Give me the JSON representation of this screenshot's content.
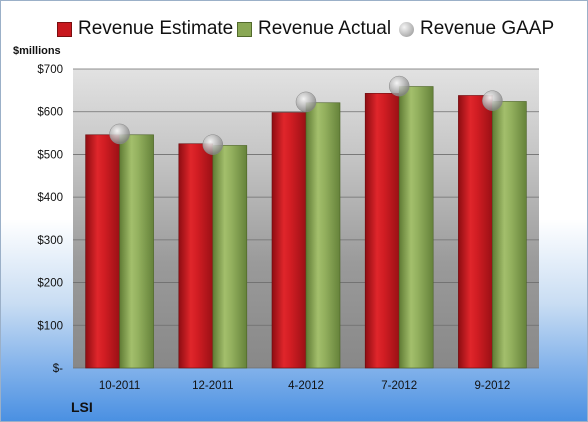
{
  "legend": {
    "estimate": "Revenue Estimate",
    "actual": "Revenue Actual",
    "gaap": "Revenue GAAP"
  },
  "unit_label": "$millions",
  "company": "LSI",
  "colors": {
    "estimate": "#c8181e",
    "actual": "#8aa855",
    "gaap": "#b0b0b0"
  },
  "chart_data": {
    "type": "bar",
    "categories": [
      "10-2011",
      "12-2011",
      "4-2012",
      "7-2012",
      "9-2012"
    ],
    "series": [
      {
        "name": "Revenue Estimate",
        "values": [
          546,
          525,
          598,
          643,
          638
        ]
      },
      {
        "name": "Revenue Actual",
        "values": [
          546,
          521,
          621,
          659,
          624
        ]
      },
      {
        "name": "Revenue GAAP",
        "values": [
          548,
          523,
          623,
          660,
          626
        ]
      }
    ],
    "yticks": [
      "$-",
      "$100",
      "$200",
      "$300",
      "$400",
      "$500",
      "$600",
      "$700"
    ],
    "ylim": [
      0,
      700
    ],
    "grid": true,
    "legend_position": "top"
  }
}
